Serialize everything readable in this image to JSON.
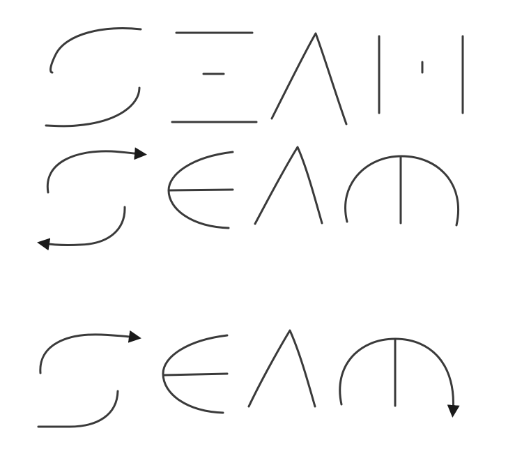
{
  "title": "",
  "colors": {
    "background": "#ffffff",
    "ink": "#3a3a3a",
    "ink_dark": "#1a1a1a"
  },
  "rows": [
    {
      "name": "geometric-variant",
      "glyphs": [
        "S",
        "E",
        "A",
        "M"
      ]
    },
    {
      "name": "rounded-variant-with-s-arrows",
      "glyphs": [
        "S",
        "E",
        "A",
        "M"
      ]
    },
    {
      "name": "rounded-variant-with-s-and-m-arrows",
      "glyphs": [
        "S",
        "E",
        "A",
        "M"
      ]
    }
  ]
}
